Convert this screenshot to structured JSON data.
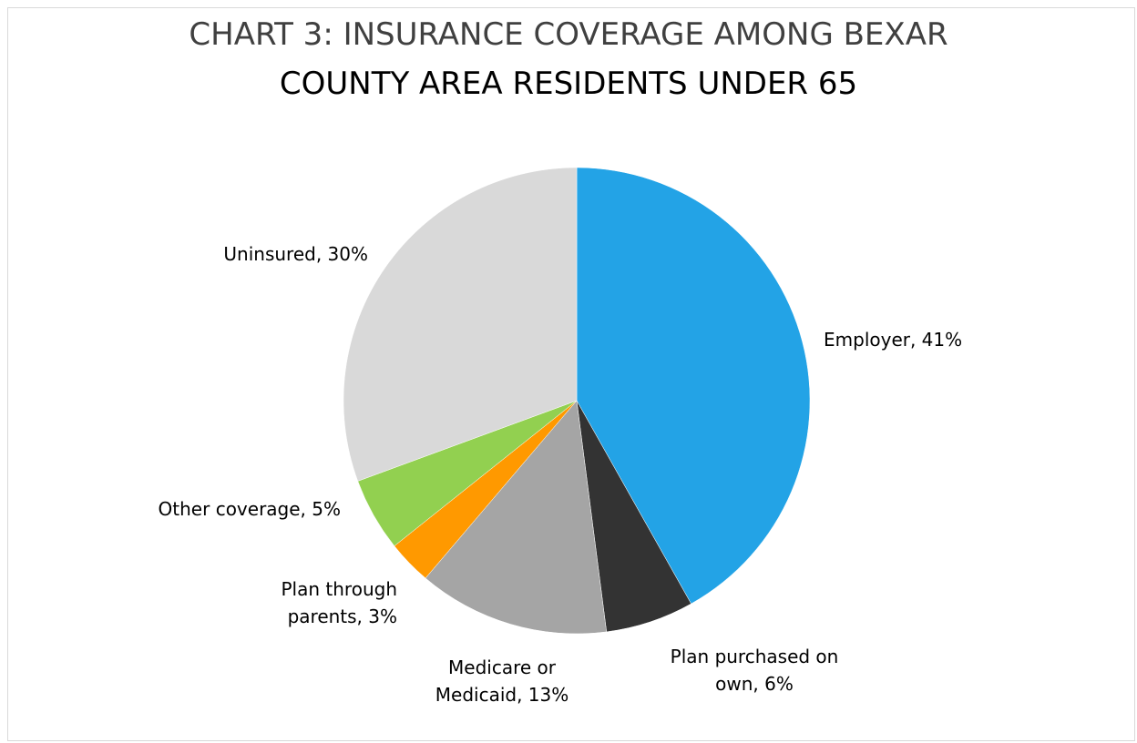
{
  "chart_data": {
    "type": "pie",
    "title": "CHART 3: INSURANCE COVERAGE AMONG BEXAR COUNTY AREA RESIDENTS UNDER 65",
    "title_lines": [
      "CHART 3: INSURANCE COVERAGE AMONG BEXAR",
      "COUNTY AREA RESIDENTS UNDER 65"
    ],
    "slices": [
      {
        "label_lines": [
          "Employer, 41%"
        ],
        "category": "Employer",
        "value": 41,
        "color": "#23a3e6"
      },
      {
        "label_lines": [
          "Plan purchased on",
          "own, 6%"
        ],
        "category": "Plan purchased on own",
        "value": 6,
        "color": "#333333"
      },
      {
        "label_lines": [
          "Medicare or",
          "Medicaid, 13%"
        ],
        "category": "Medicare or Medicaid",
        "value": 13,
        "color": "#a5a5a5"
      },
      {
        "label_lines": [
          "Plan through",
          "parents, 3%"
        ],
        "category": "Plan through parents",
        "value": 3,
        "color": "#ff9900"
      },
      {
        "label_lines": [
          "Other coverage, 5%"
        ],
        "category": "Other coverage",
        "value": 5,
        "color": "#92d050"
      },
      {
        "label_lines": [
          "Uninsured, 30%"
        ],
        "category": "Uninsured",
        "value": 30,
        "color": "#d9d9d9"
      }
    ],
    "legend": "none",
    "data_labels": "outside"
  }
}
